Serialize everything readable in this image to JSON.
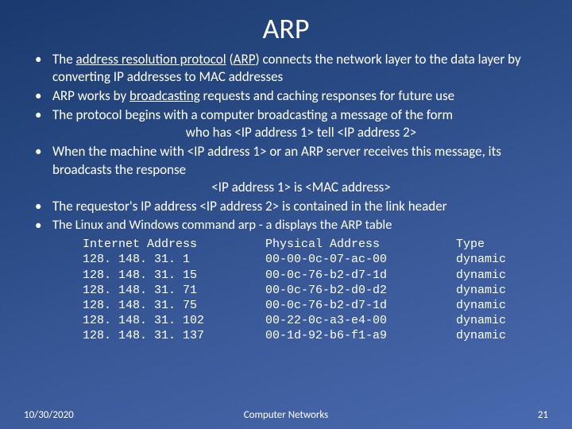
{
  "title": "ARP",
  "bullets": [
    {
      "html": "The <span class='u'>address resolution protocol</span> (<span class='u'>ARP</span>) connects the network layer to the data layer by converting IP addresses to MAC addresses"
    },
    {
      "html": "ARP works by <span class='u'>broadcasting</span> requests and caching responses for future use"
    },
    {
      "html": "The protocol begins with a computer broadcasting a message of the form<span class='center-line'>who has &lt;IP address 1&gt; tell &lt;IP address 2&gt;</span>"
    },
    {
      "html": "When the machine with &lt;IP address 1&gt; or an ARP server receives this message, its broadcasts the response<span class='center-line'>&lt;IP address 1&gt; is &lt;MAC address&gt;</span>"
    },
    {
      "html": "The requestor's IP address &lt;IP address 2&gt;  is contained in the link header"
    },
    {
      "html": "The Linux and Windows command arp - a displays the ARP table",
      "smaller": true
    }
  ],
  "arp_table": {
    "header": {
      "ip": "Internet Address",
      "mac": "Physical Address",
      "type": "Type"
    },
    "rows": [
      {
        "ip": "128. 148. 31. 1",
        "mac": "00-00-0c-07-ac-00",
        "type": "dynamic"
      },
      {
        "ip": "128. 148. 31. 15",
        "mac": "00-0c-76-b2-d7-1d",
        "type": "dynamic"
      },
      {
        "ip": "128. 148. 31. 71",
        "mac": "00-0c-76-b2-d0-d2",
        "type": "dynamic"
      },
      {
        "ip": "128. 148. 31. 75",
        "mac": "00-0c-76-b2-d7-1d",
        "type": "dynamic"
      },
      {
        "ip": "128. 148. 31. 102",
        "mac": "00-22-0c-a3-e4-00",
        "type": "dynamic"
      },
      {
        "ip": "128. 148. 31. 137",
        "mac": "00-1d-92-b6-f1-a9",
        "type": "dynamic"
      }
    ]
  },
  "footer": {
    "date": "10/30/2020",
    "center": "Computer Networks",
    "page": "21"
  }
}
